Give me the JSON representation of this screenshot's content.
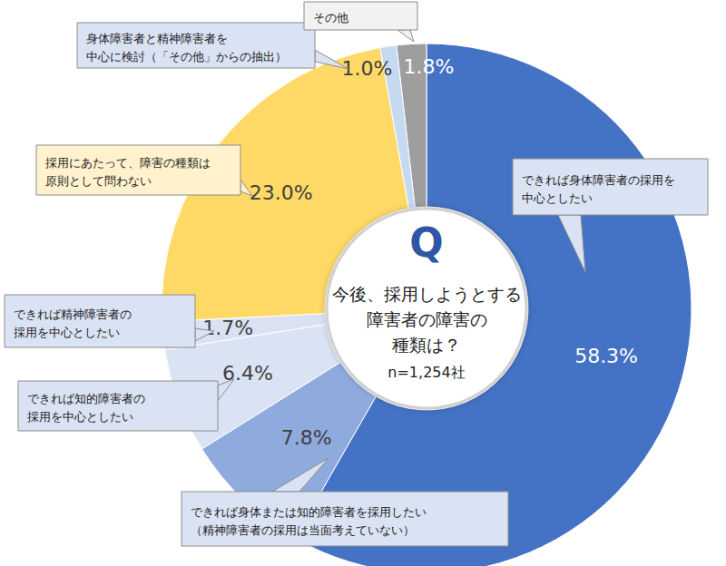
{
  "chart_data": {
    "type": "donut",
    "title": "今後、採用しようとする\n障害者の障害の\n種類は？",
    "subtitle": "n=1,254社",
    "annotations": [
      "Q"
    ],
    "categories": [
      "できれば身体障害者の採用を\n中心としたい",
      "できれば身体または知的障害者を採用したい\n（精神障害者の採用は当面考えていない）",
      "できれば知的障害者の\n採用を中心としたい",
      "できれば精神障害者の\n採用を中心としたい",
      "採用にあたって、障害の種類は\n原則として問わない",
      "身体障害者と精神障害者を\n中心に検討（「その他」からの抽出）",
      "その他"
    ],
    "values": [
      58.3,
      7.8,
      6.4,
      1.7,
      23.0,
      1.0,
      1.8
    ],
    "value_labels": [
      "58.3%",
      "7.8%",
      "6.4%",
      "1.7%",
      "23.0%",
      "1.0%",
      "1.8%"
    ],
    "colors": [
      "#4472c4",
      "#8faadc",
      "#dae3f3",
      "#d9e1f2",
      "#ffd966",
      "#c5d9f1",
      "#9e9e9e"
    ],
    "data_labels": true
  }
}
